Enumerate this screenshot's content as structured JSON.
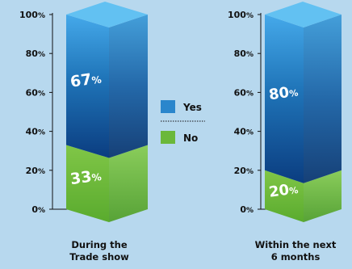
{
  "chart_data": {
    "type": "bar",
    "stacked": true,
    "three_d": true,
    "categories": [
      [
        "During the",
        "Trade show"
      ],
      [
        "Within the next",
        "6 months"
      ]
    ],
    "series": [
      {
        "name": "No",
        "values": [
          33,
          20
        ],
        "labels": [
          "33%",
          "20%"
        ],
        "color": "#77c043"
      },
      {
        "name": "Yes",
        "values": [
          67,
          80
        ],
        "labels": [
          "67%",
          "80%"
        ],
        "color": "#2a7fc0"
      }
    ],
    "yticks": [
      "0%",
      "20%",
      "40%",
      "60%",
      "80%",
      "100%"
    ],
    "ylim": [
      0,
      100
    ],
    "legend": {
      "placement": "center",
      "items": [
        "Yes",
        "No"
      ]
    },
    "background": "#b7d8ee"
  }
}
